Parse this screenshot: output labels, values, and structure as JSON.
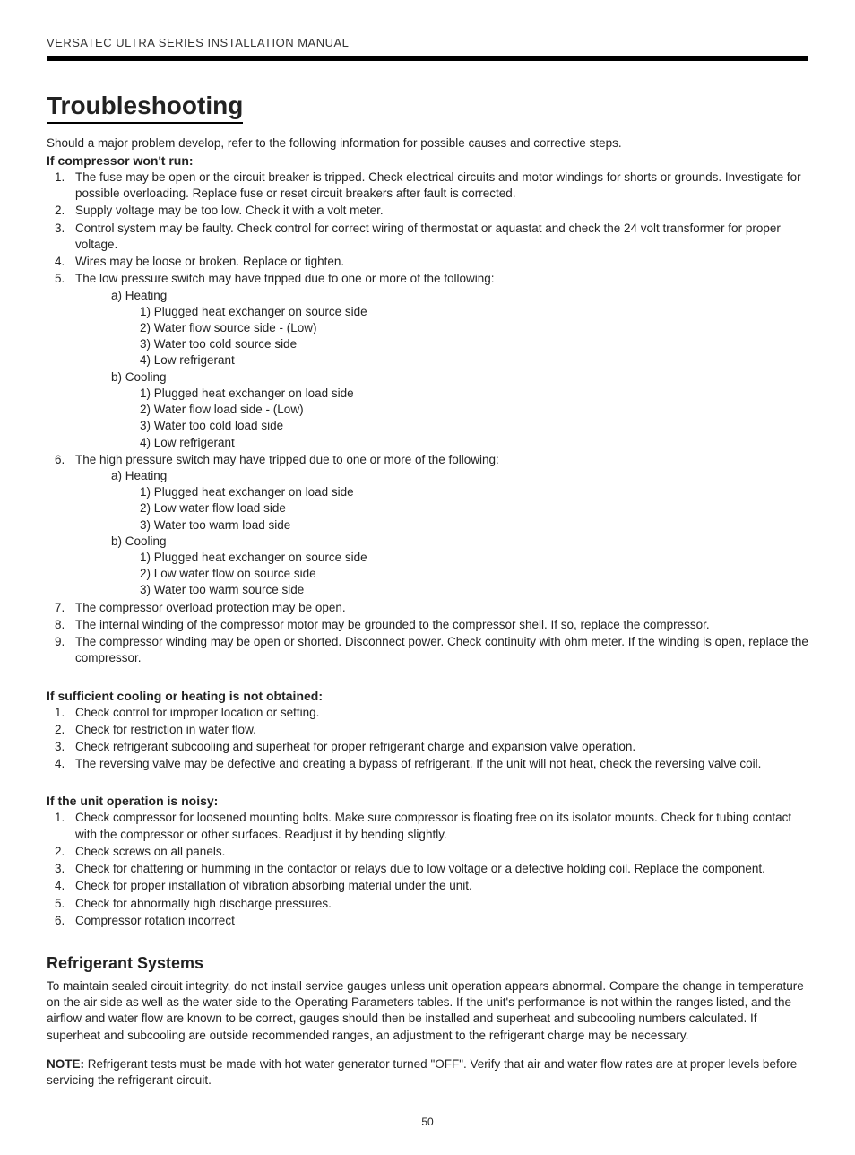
{
  "header": "VERSATEC ULTRA SERIES INSTALLATION MANUAL",
  "title": "Troubleshooting",
  "intro": "Should a major problem develop, refer to the following information for possible causes and corrective steps.",
  "sect1": {
    "heading": "If compressor won't run:",
    "items": {
      "i1": "The fuse may be open or the circuit breaker is tripped. Check electrical circuits and motor windings for shorts or grounds. Investigate for possible overloading. Replace fuse or reset circuit breakers after fault is corrected.",
      "i2": "Supply voltage may be too low. Check it with a volt meter.",
      "i3": "Control system may be faulty. Check control for correct wiring of thermostat or aquastat and check the 24 volt transformer for proper voltage.",
      "i4": "Wires may be loose or broken. Replace or tighten.",
      "i5": "The low pressure switch may have tripped due to one or more of the following:",
      "i5a": "a) Heating",
      "i5a1": "1) Plugged heat exchanger on source side",
      "i5a2": "2) Water flow source side - (Low)",
      "i5a3": "3) Water too cold source side",
      "i5a4": "4) Low refrigerant",
      "i5b": "b) Cooling",
      "i5b1": "1) Plugged heat exchanger on load side",
      "i5b2": "2) Water flow load side - (Low)",
      "i5b3": "3) Water too cold load side",
      "i5b4": "4) Low refrigerant",
      "i6": "The high pressure switch may have tripped due to one or more of the following:",
      "i6a": "a) Heating",
      "i6a1": "1) Plugged heat exchanger on load side",
      "i6a2": "2) Low water flow load side",
      "i6a3": "3) Water too warm load side",
      "i6b": "b) Cooling",
      "i6b1": "1) Plugged heat exchanger on source side",
      "i6b2": "2) Low water flow on source side",
      "i6b3": "3) Water too warm source side",
      "i7": "The compressor overload protection may be open.",
      "i8": "The internal winding of the compressor motor may be grounded to the compressor shell. If so, replace the compressor.",
      "i9": "The compressor winding may be open or shorted. Disconnect power. Check continuity with ohm meter. If the winding is open, replace the compressor."
    }
  },
  "sect2": {
    "heading": "If sufficient cooling or heating is not obtained:",
    "items": {
      "i1": "Check control for improper location or setting.",
      "i2": "Check for restriction in water flow.",
      "i3": "Check refrigerant subcooling and superheat for proper refrigerant charge and expansion valve operation.",
      "i4": "The reversing valve may be defective and creating a bypass of refrigerant.  If the unit will not heat, check the reversing valve coil."
    }
  },
  "sect3": {
    "heading": "If the unit operation is noisy:",
    "items": {
      "i1": "Check compressor for loosened mounting bolts. Make sure compressor is floating free on its isolator mounts. Check for tubing contact with the compressor or other surfaces. Readjust it by bending slightly.",
      "i2": "Check screws on all panels.",
      "i3": "Check for chattering or humming in the contactor or relays due to low voltage or a defective holding coil. Replace the component.",
      "i4": "Check for proper installation of vibration absorbing material under the unit.",
      "i5": "Check for abnormally high discharge pressures.",
      "i6": "Compressor rotation incorrect"
    }
  },
  "refrig": {
    "heading": "Refrigerant Systems",
    "para1": "To maintain sealed circuit integrity, do not install service gauges unless unit operation appears abnormal. Compare the change in temperature on the air side as well as the water side to the Operating Parameters tables. If the unit's performance is not within the ranges listed, and the airflow and water flow are known to be correct, gauges should then be installed and superheat and subcooling numbers calculated. If superheat and subcooling are outside recommended ranges, an adjustment to the refrigerant charge may be necessary.",
    "noteLabel": "NOTE:",
    "noteBody": " Refrigerant tests must be made with hot water generator turned \"OFF\". Verify that air and water flow rates are at proper levels before servicing the refrigerant circuit."
  },
  "pageNumber": "50"
}
